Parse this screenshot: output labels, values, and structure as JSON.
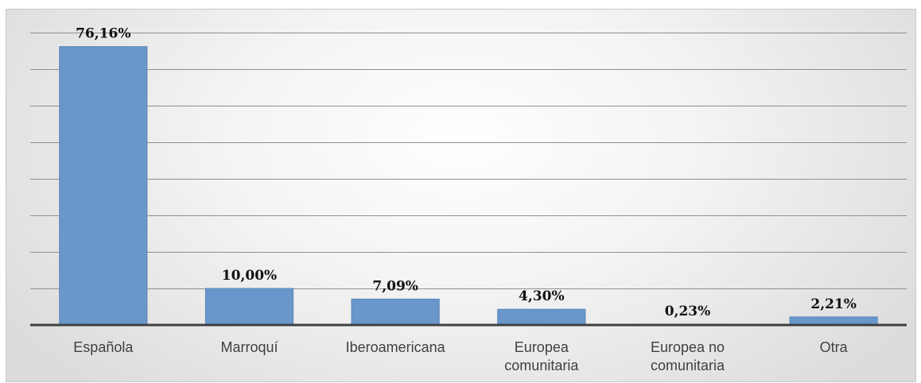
{
  "chart_data": {
    "type": "bar",
    "categories": [
      "Española",
      "Marroquí",
      "Iberoamericana",
      "Europea comunitaria",
      "Europea no comunitaria",
      "Otra"
    ],
    "category_lines": [
      [
        "Española"
      ],
      [
        "Marroquí"
      ],
      [
        "Iberoamericana"
      ],
      [
        "Europea",
        "comunitaria"
      ],
      [
        "Europea no",
        "comunitaria"
      ],
      [
        "Otra"
      ]
    ],
    "values": [
      76.16,
      10.0,
      7.09,
      4.3,
      0.23,
      2.21
    ],
    "data_labels": [
      "76,16%",
      "10,00%",
      "7,09%",
      "4,30%",
      "0,23%",
      "2,21%"
    ],
    "ylim": [
      0,
      80
    ],
    "y_grid_step": 10,
    "grid": true,
    "legend": "none",
    "bar_color": "#6a97cb",
    "title": "",
    "xlabel": "",
    "ylabel": ""
  }
}
